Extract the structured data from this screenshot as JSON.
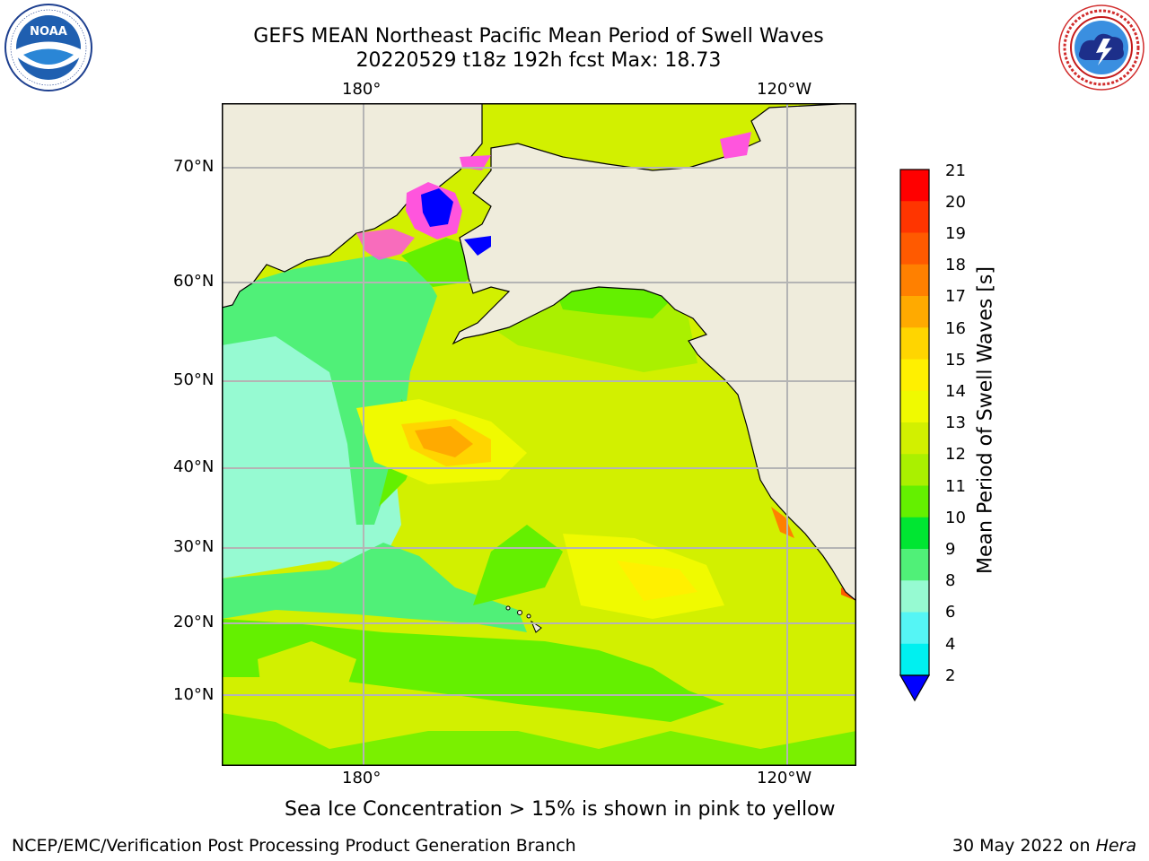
{
  "header": {
    "title_line1": "GEFS MEAN Northeast Pacific Mean Period of Swell Waves",
    "title_line2": "20220529 t18z 192h fcst   Max: 18.73"
  },
  "logos": {
    "left": {
      "icon": "noaa-logo",
      "text": "NOAA",
      "ring_text": "NATIONAL OCEANIC AND ATMOSPHERIC ADMINISTRATION · U.S. DEPARTMENT OF COMMERCE"
    },
    "right": {
      "icon": "nws-logo",
      "ring_text": "NATIONAL WEATHER SERVICE"
    }
  },
  "map": {
    "lon_labels_top": [
      "180°",
      "120°W"
    ],
    "lon_labels_bottom": [
      "180°",
      "120°W"
    ],
    "lat_labels": [
      "70°N",
      "60°N",
      "50°N",
      "40°N",
      "30°N",
      "20°N",
      "10°N"
    ],
    "land_color": "#efecdc",
    "grid_color": "#b4b4b4"
  },
  "colorbar": {
    "label": "Mean Period of Swell Waves [s]",
    "ticks": [
      "21",
      "20",
      "19",
      "18",
      "17",
      "16",
      "15",
      "14",
      "13",
      "12",
      "11",
      "10",
      "9",
      "8",
      "6",
      "4",
      "2"
    ],
    "colors": [
      "#ff0000",
      "#ff3500",
      "#ff5a00",
      "#ff8000",
      "#ffaa00",
      "#ffd500",
      "#fff000",
      "#f0fa00",
      "#d2f000",
      "#aaf000",
      "#64f000",
      "#00e632",
      "#50f078",
      "#96fad2",
      "#55f5f5",
      "#00f0f0",
      "#00c8ff",
      "#0064ff",
      "#0000ff"
    ]
  },
  "legend_note": "Sea Ice Concentration > 15% is shown in pink to yellow",
  "footer": {
    "left": "NCEP/EMC/Verification Post Processing Product Generation Branch",
    "right_prefix": "30 May 2022 on ",
    "right_host": "Hera"
  }
}
